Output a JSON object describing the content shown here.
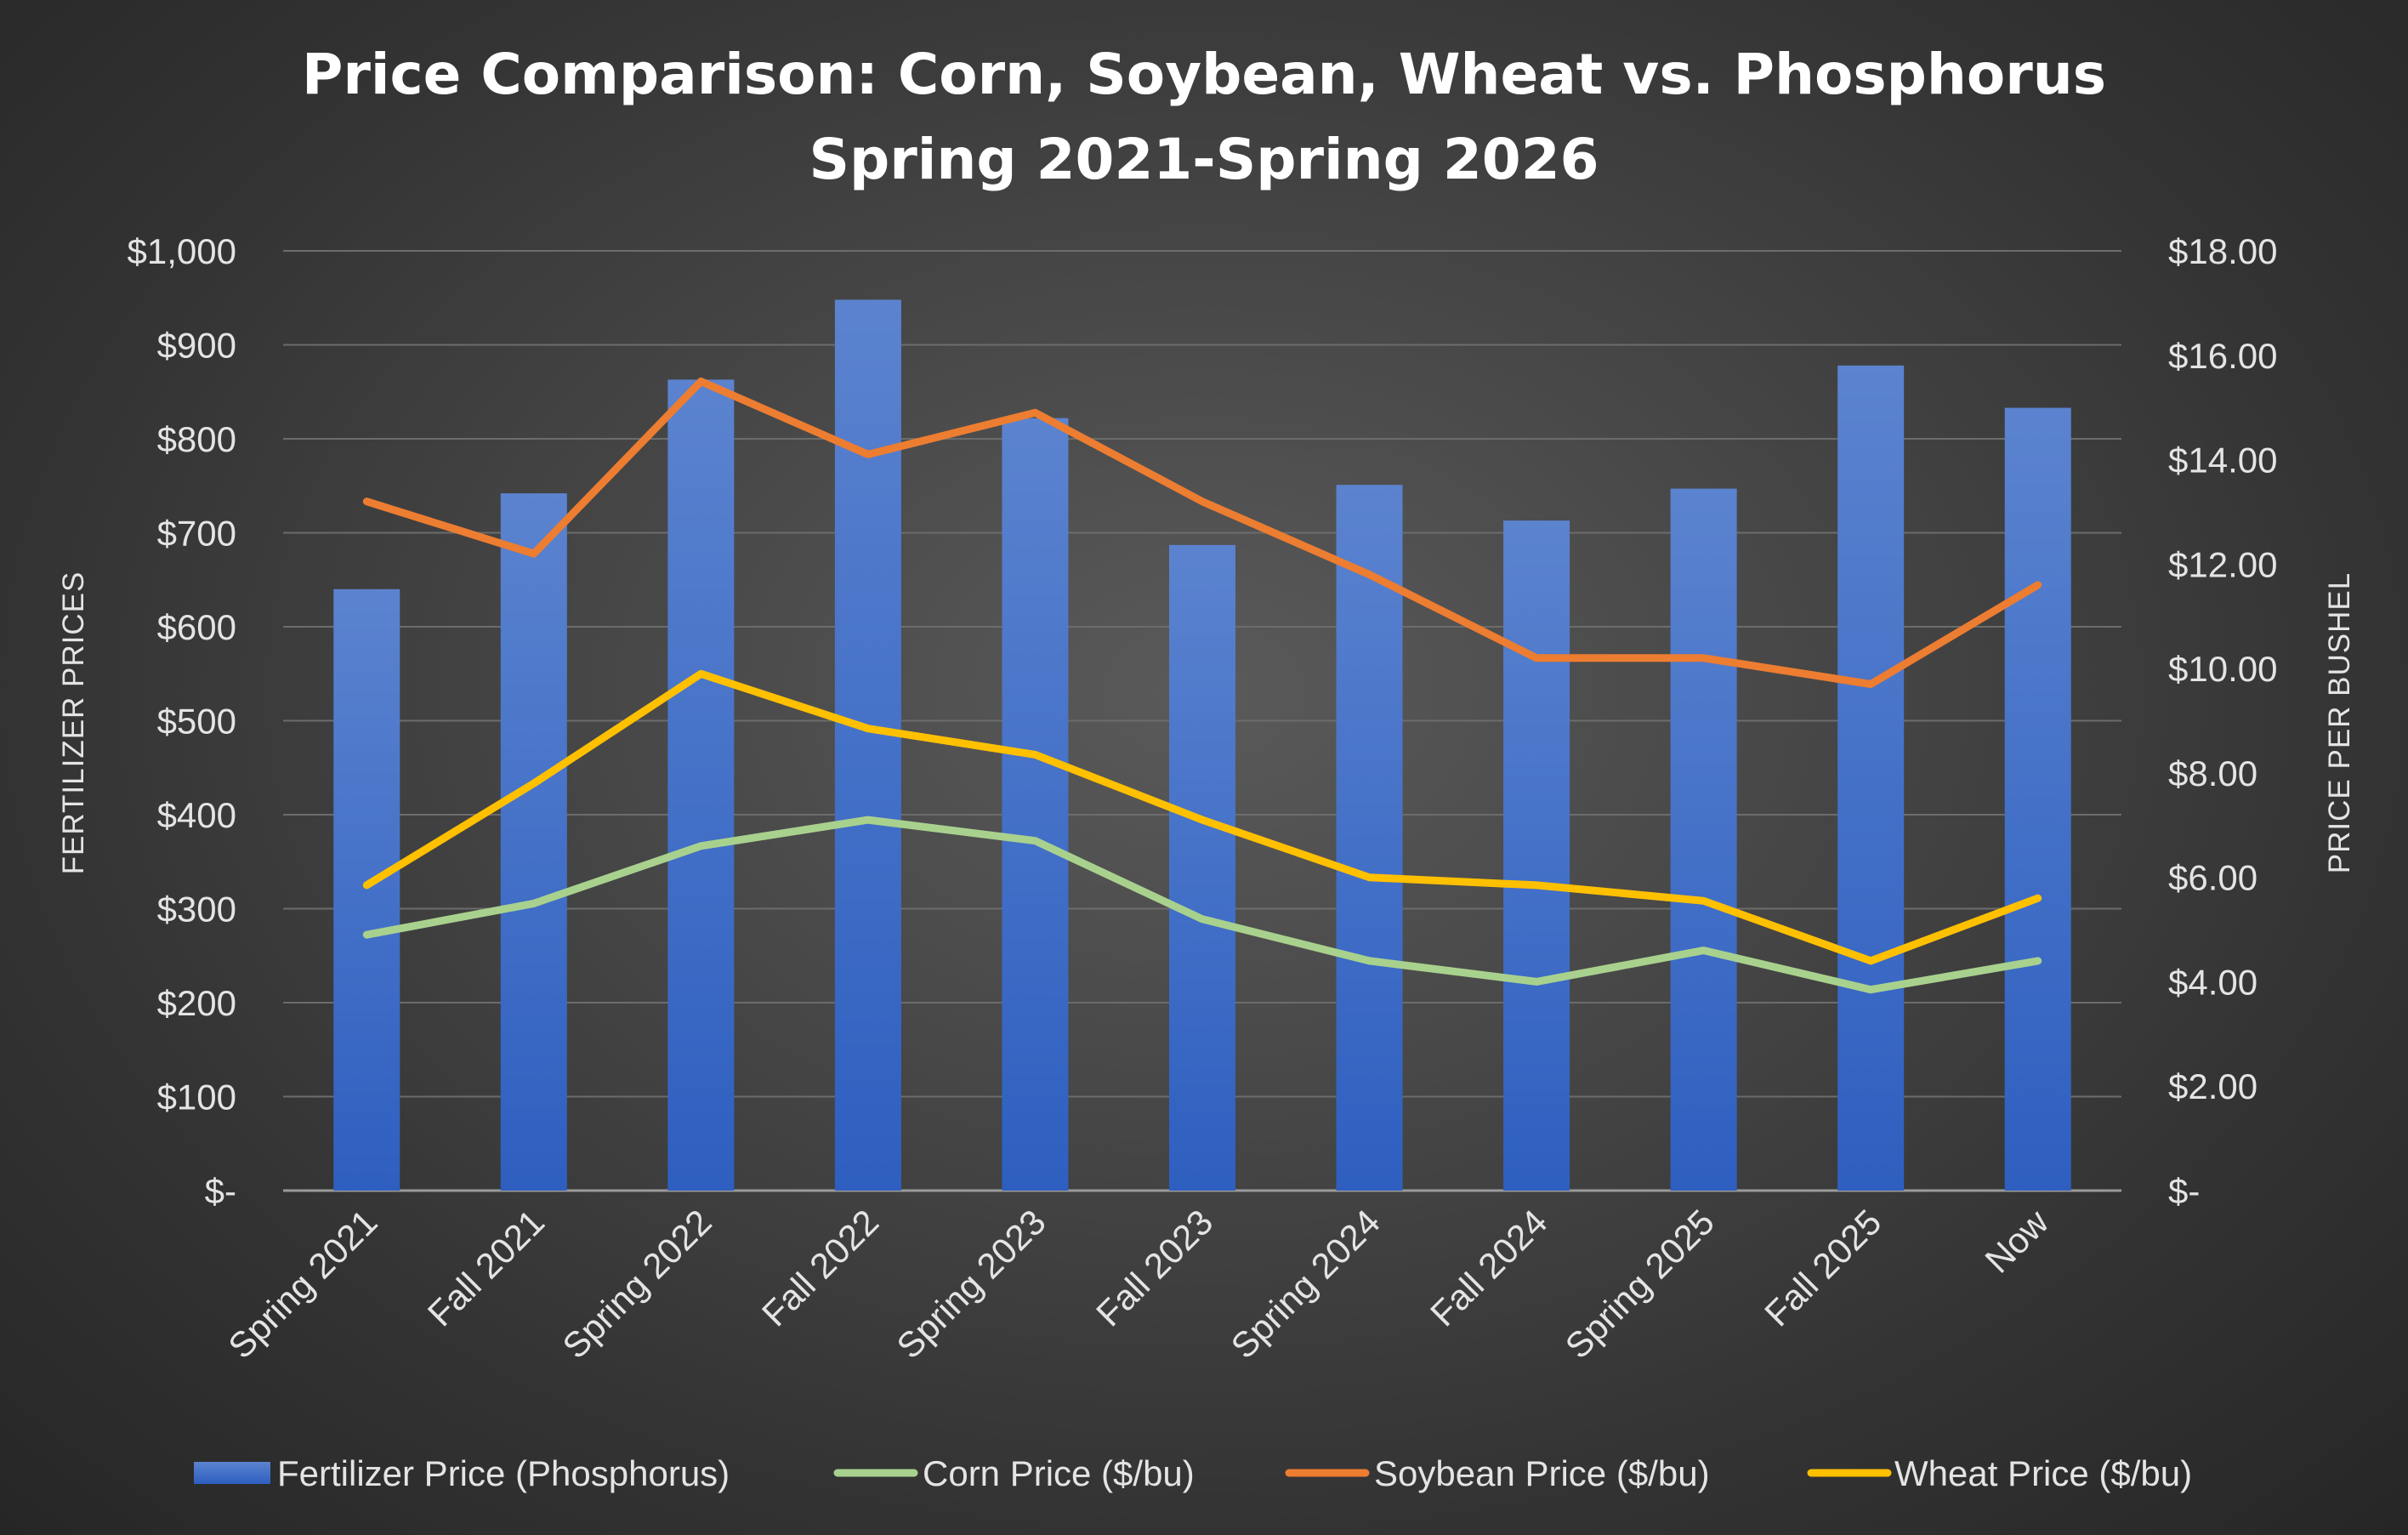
{
  "chart_data": {
    "type": "bar",
    "title": "Price Comparison: Corn, Soybean, Wheat vs. Phosphorus",
    "subtitle": "Spring 2021-Spring 2026",
    "categories": [
      "Spring 2021",
      "Fall 2021",
      "Spring 2022",
      "Fall 2022",
      "Spring 2023",
      "Fall 2023",
      "Spring 2024",
      "Fall 2024",
      "Spring 2025",
      "Fall 2025",
      "Now"
    ],
    "ylabel": "FERTILIZER PRICES",
    "y2label": "PRICE  PER BUSHEL",
    "ylim": [
      0,
      1000
    ],
    "y2lim": [
      0,
      18
    ],
    "y_ticks": [
      "$-",
      "$100",
      "$200",
      "$300",
      "$400",
      "$500",
      "$600",
      "$700",
      "$800",
      "$900",
      "$1,000"
    ],
    "y2_ticks": [
      "$-",
      "$2.00",
      "$4.00",
      "$6.00",
      "$8.00",
      "$10.00",
      "$12.00",
      "$14.00",
      "$16.00",
      "$18.00"
    ],
    "grid": true,
    "legend_position": "bottom",
    "series": [
      {
        "name": "Fertilizer Price (Phosphorus)",
        "type": "bar",
        "axis": "left",
        "color": "#4472c4",
        "values": [
          640,
          742,
          863,
          948,
          822,
          687,
          751,
          713,
          747,
          878,
          833
        ]
      },
      {
        "name": "Corn Price ($/bu)",
        "type": "line",
        "axis": "right",
        "color": "#a9d18e",
        "values": [
          4.9,
          5.5,
          6.6,
          7.1,
          6.7,
          5.2,
          4.4,
          4.0,
          4.6,
          3.85,
          4.4
        ]
      },
      {
        "name": "Soybean Price ($/bu)",
        "type": "line",
        "axis": "right",
        "color": "#ed7d31",
        "values": [
          13.2,
          12.2,
          15.5,
          14.1,
          14.9,
          13.2,
          11.8,
          10.2,
          10.2,
          9.7,
          11.6
        ]
      },
      {
        "name": "Wheat Price ($/bu)",
        "type": "line",
        "axis": "right",
        "color": "#ffc000",
        "values": [
          5.85,
          7.8,
          9.9,
          8.85,
          8.35,
          7.1,
          6.0,
          5.85,
          5.55,
          4.4,
          5.6
        ]
      }
    ]
  }
}
